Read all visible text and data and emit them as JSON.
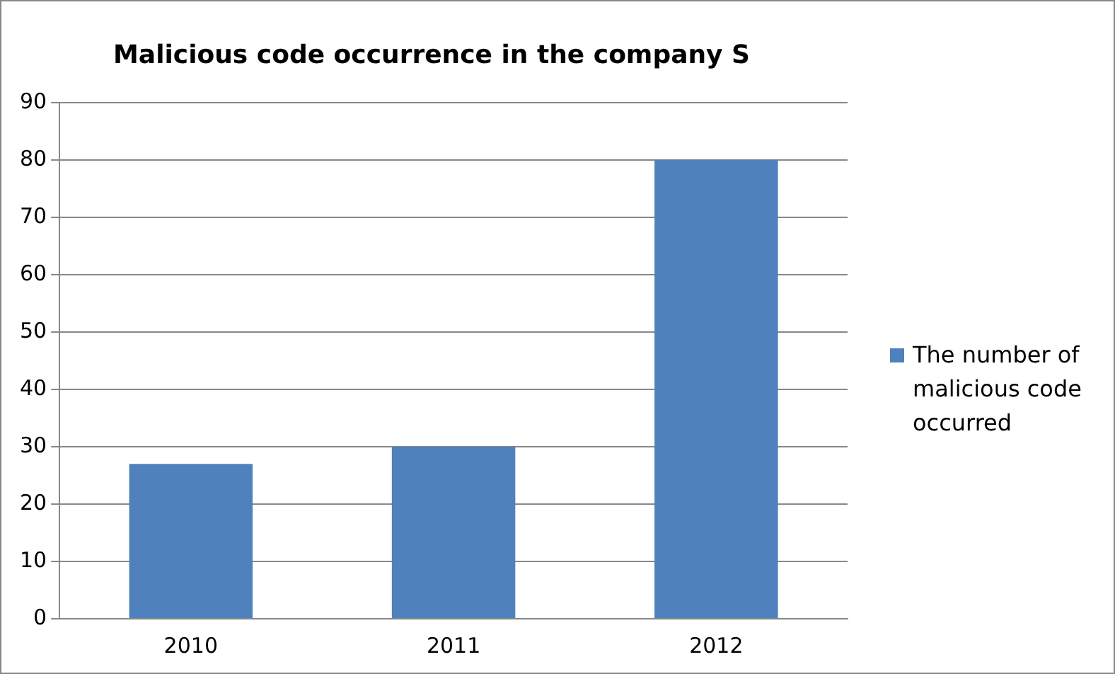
{
  "chart_data": {
    "type": "bar",
    "title": "Malicious code occurrence in the company S",
    "categories": [
      "2010",
      "2011",
      "2012"
    ],
    "series": [
      {
        "name": "The number of malicious code occurred",
        "color": "#4f81bd",
        "values": [
          27,
          30,
          80
        ]
      }
    ],
    "ylim": [
      0,
      90
    ],
    "yticks": [
      0,
      10,
      20,
      30,
      40,
      50,
      60,
      70,
      80,
      90
    ],
    "grid": "y",
    "legend": "right"
  }
}
